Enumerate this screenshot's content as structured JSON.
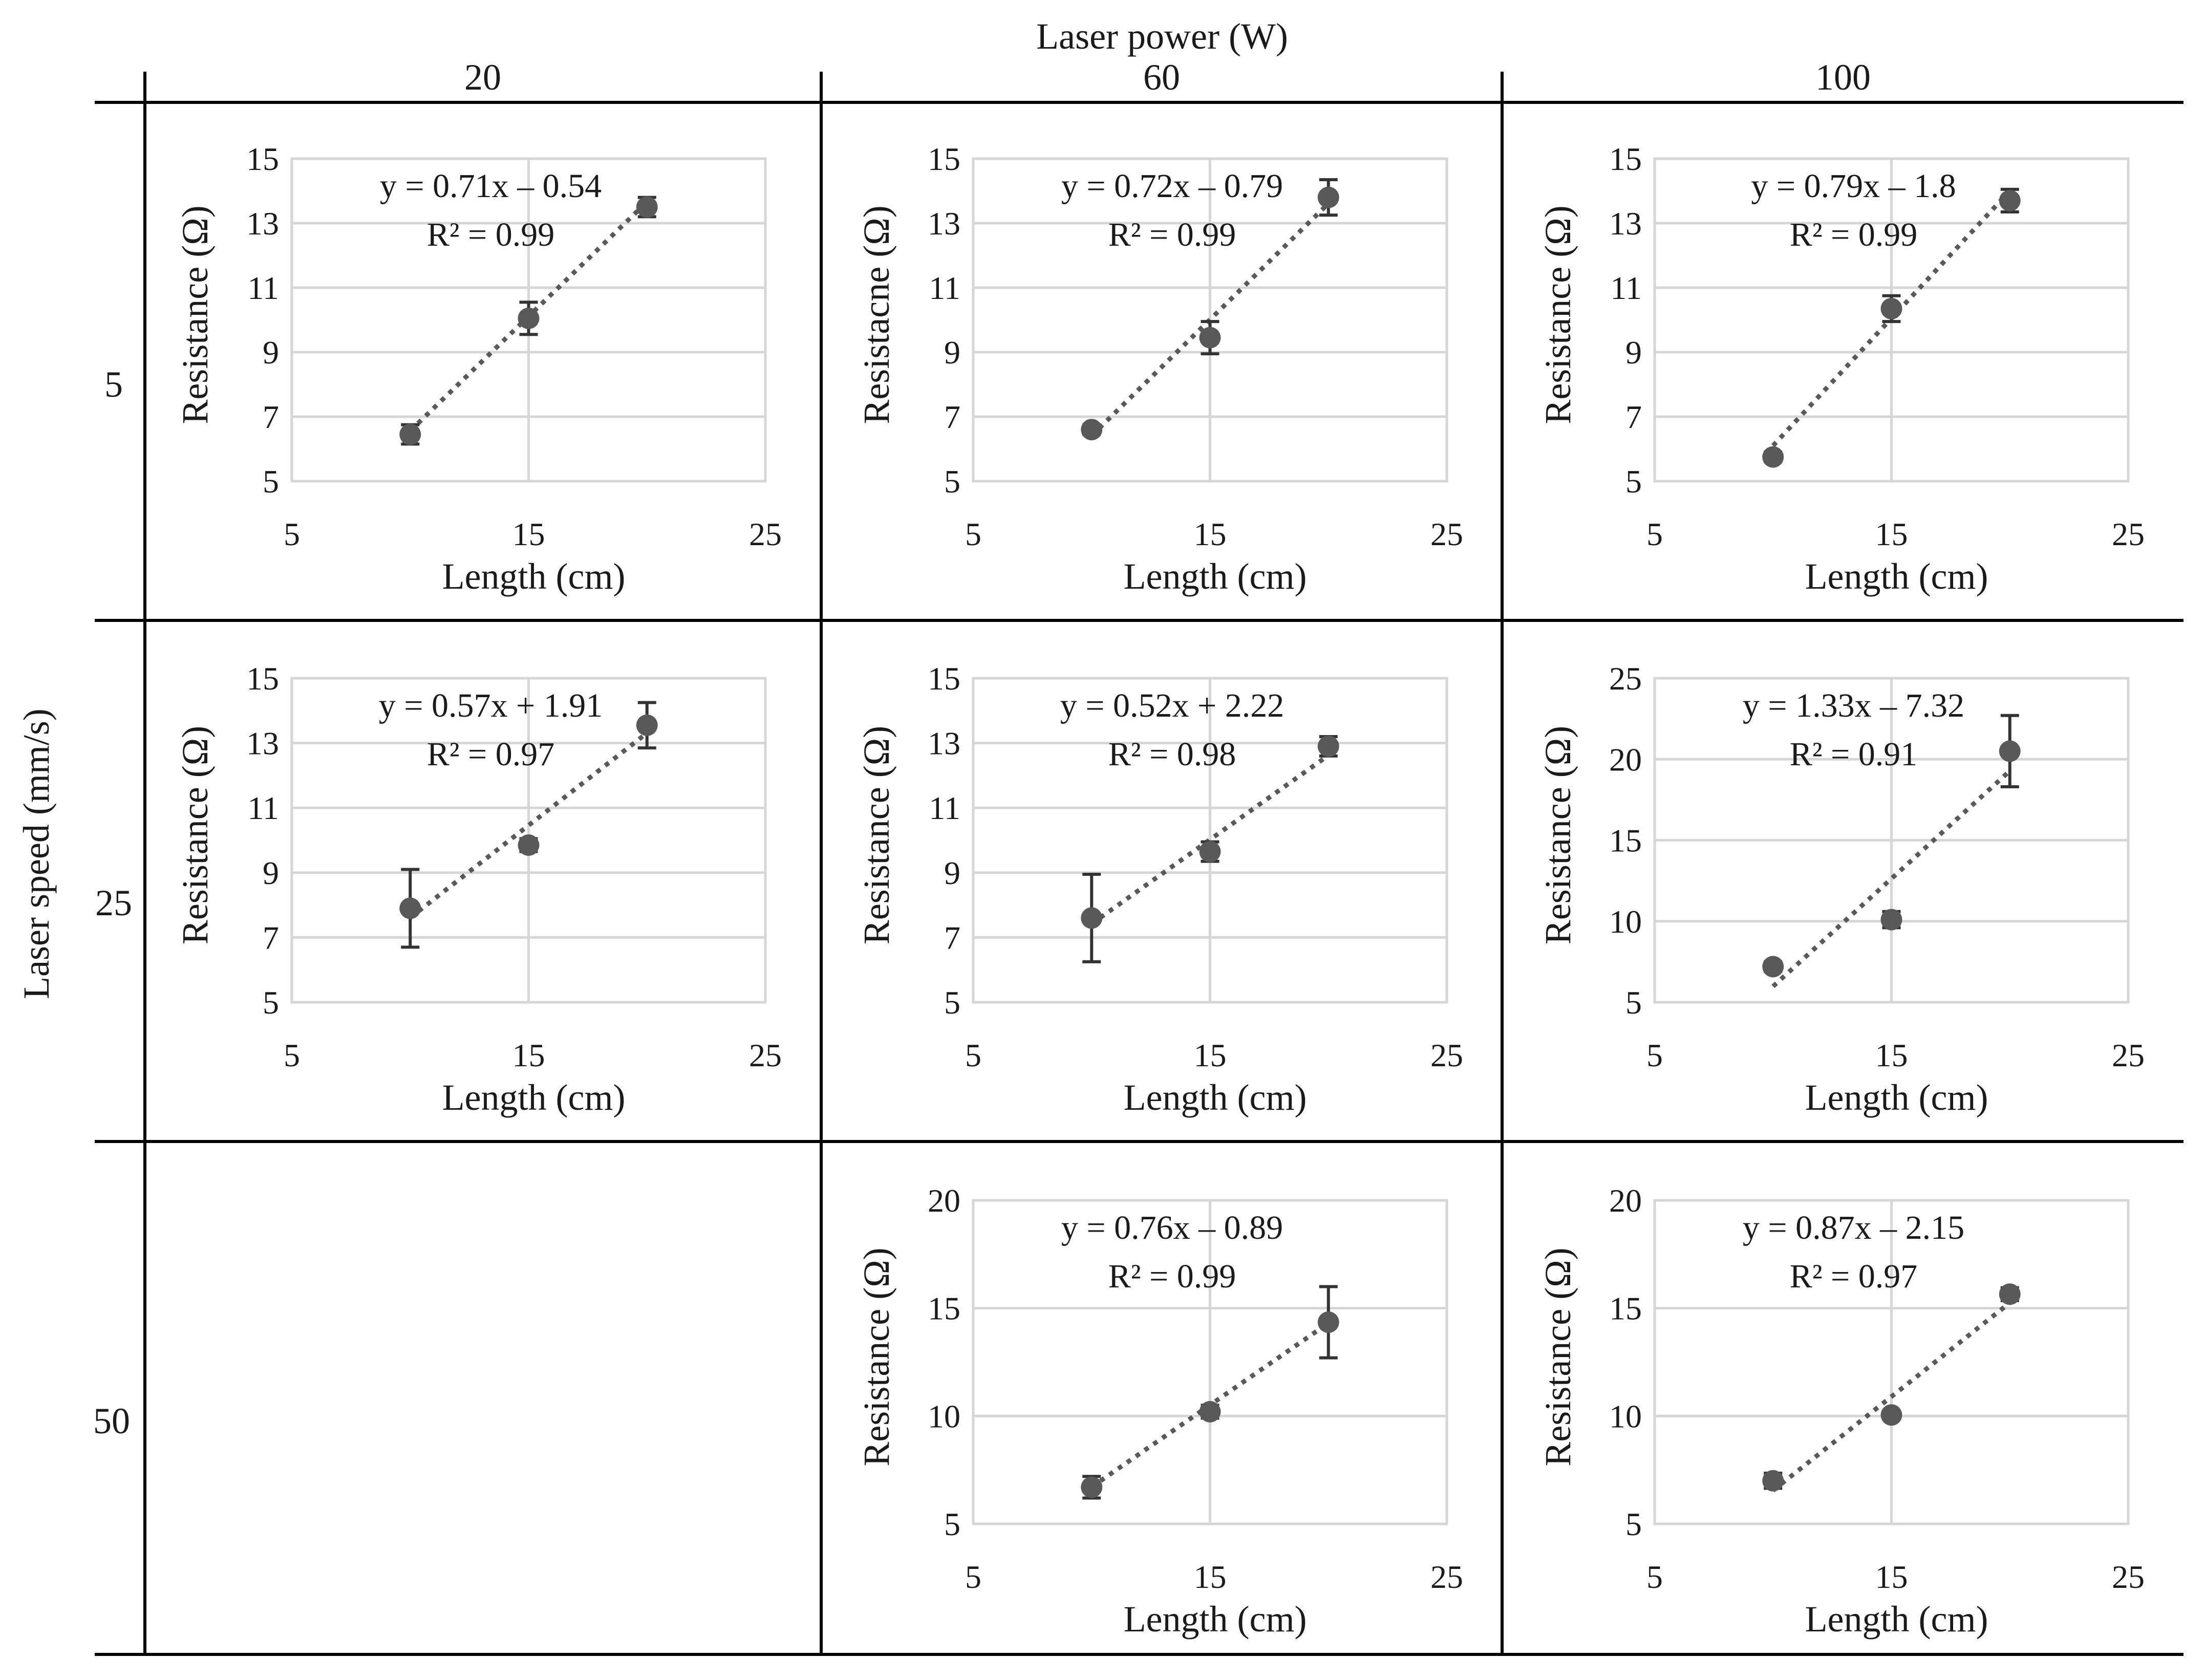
{
  "figure": {
    "top_title": "Laser power (W)",
    "left_title": "Laser speed (mm/s)",
    "power_headers": [
      "20",
      "60",
      "100"
    ],
    "speed_headers": [
      "5",
      "25",
      "50"
    ]
  },
  "chart_data": [
    {
      "id": "p20-s5",
      "row": 0,
      "col": 0,
      "type": "scatter",
      "xlabel": "Length (cm)",
      "ylabel": "Resistance (Ω)",
      "xlim": [
        5,
        25
      ],
      "xticks": [
        "5",
        "15",
        "25"
      ],
      "ylim": [
        5,
        15
      ],
      "yticks": [
        "5",
        "7",
        "9",
        "11",
        "13",
        "15"
      ],
      "x": [
        10,
        15,
        20
      ],
      "y": [
        6.45,
        10.05,
        13.5
      ],
      "err": [
        0.3,
        0.5,
        0.3
      ],
      "trend": {
        "slope": 0.71,
        "intercept": -0.54
      },
      "equation": "y = 0.71x – 0.54",
      "r2": "R² = 0.99"
    },
    {
      "id": "p60-s5",
      "row": 0,
      "col": 1,
      "type": "scatter",
      "xlabel": "Length (cm)",
      "ylabel": "Resistacne (Ω)",
      "xlim": [
        5,
        25
      ],
      "xticks": [
        "5",
        "15",
        "25"
      ],
      "ylim": [
        5,
        15
      ],
      "yticks": [
        "5",
        "7",
        "9",
        "11",
        "13",
        "15"
      ],
      "x": [
        10,
        15,
        20
      ],
      "y": [
        6.6,
        9.45,
        13.8
      ],
      "err": [
        0.15,
        0.5,
        0.55
      ],
      "trend": {
        "slope": 0.72,
        "intercept": -0.79
      },
      "equation": "y = 0.72x – 0.79",
      "r2": "R² = 0.99"
    },
    {
      "id": "p100-s5",
      "row": 0,
      "col": 2,
      "type": "scatter",
      "xlabel": "Length (cm)",
      "ylabel": "Resistance (Ω)",
      "xlim": [
        5,
        25
      ],
      "xticks": [
        "5",
        "15",
        "25"
      ],
      "ylim": [
        5,
        15
      ],
      "yticks": [
        "5",
        "7",
        "9",
        "11",
        "13",
        "15"
      ],
      "x": [
        10,
        15,
        20
      ],
      "y": [
        5.75,
        10.35,
        13.7
      ],
      "err": [
        0.15,
        0.4,
        0.35
      ],
      "trend": {
        "slope": 0.79,
        "intercept": -1.8
      },
      "equation": "y = 0.79x – 1.8",
      "r2": "R² = 0.99"
    },
    {
      "id": "p20-s25",
      "row": 1,
      "col": 0,
      "type": "scatter",
      "xlabel": "Length (cm)",
      "ylabel": "Resistance (Ω)",
      "xlim": [
        5,
        25
      ],
      "xticks": [
        "5",
        "15",
        "25"
      ],
      "ylim": [
        5,
        15
      ],
      "yticks": [
        "5",
        "7",
        "9",
        "11",
        "13",
        "15"
      ],
      "x": [
        10,
        15,
        20
      ],
      "y": [
        7.9,
        9.85,
        13.55
      ],
      "err": [
        1.2,
        0.2,
        0.7
      ],
      "trend": {
        "slope": 0.57,
        "intercept": 1.91
      },
      "equation": "y = 0.57x + 1.91",
      "r2": "R² = 0.97"
    },
    {
      "id": "p60-s25",
      "row": 1,
      "col": 1,
      "type": "scatter",
      "xlabel": "Length (cm)",
      "ylabel": "Resistance (Ω)",
      "xlim": [
        5,
        25
      ],
      "xticks": [
        "5",
        "15",
        "25"
      ],
      "ylim": [
        5,
        15
      ],
      "yticks": [
        "5",
        "7",
        "9",
        "11",
        "13",
        "15"
      ],
      "x": [
        10,
        15,
        20
      ],
      "y": [
        7.6,
        9.65,
        12.9
      ],
      "err": [
        1.35,
        0.3,
        0.3
      ],
      "trend": {
        "slope": 0.52,
        "intercept": 2.22
      },
      "equation": "y = 0.52x + 2.22",
      "r2": "R² = 0.98"
    },
    {
      "id": "p100-s25",
      "row": 1,
      "col": 2,
      "type": "scatter",
      "xlabel": "Length (cm)",
      "ylabel": "Resistance (Ω)",
      "xlim": [
        5,
        25
      ],
      "xticks": [
        "5",
        "15",
        "25"
      ],
      "ylim": [
        5,
        25
      ],
      "yticks": [
        "5",
        "10",
        "15",
        "20",
        "25"
      ],
      "x": [
        10,
        15,
        20
      ],
      "y": [
        7.2,
        10.1,
        20.5
      ],
      "err": [
        0.3,
        0.5,
        2.2
      ],
      "trend": {
        "slope": 1.33,
        "intercept": -7.32
      },
      "equation": "y = 1.33x – 7.32",
      "r2": "R² = 0.91"
    },
    {
      "id": "p60-s50",
      "row": 2,
      "col": 1,
      "type": "scatter",
      "xlabel": "Length (cm)",
      "ylabel": "Resistance (Ω)",
      "xlim": [
        5,
        25
      ],
      "xticks": [
        "5",
        "15",
        "25"
      ],
      "ylim": [
        5,
        20
      ],
      "yticks": [
        "5",
        "10",
        "15",
        "20"
      ],
      "x": [
        10,
        15,
        20
      ],
      "y": [
        6.7,
        10.2,
        14.35
      ],
      "err": [
        0.5,
        0.3,
        1.65
      ],
      "trend": {
        "slope": 0.76,
        "intercept": -0.89
      },
      "equation": "y = 0.76x – 0.89",
      "r2": "R² = 0.99"
    },
    {
      "id": "p100-s50",
      "row": 2,
      "col": 2,
      "type": "scatter",
      "xlabel": "Length (cm)",
      "ylabel": "Resistance (Ω)",
      "xlim": [
        5,
        25
      ],
      "xticks": [
        "5",
        "15",
        "25"
      ],
      "ylim": [
        5,
        20
      ],
      "yticks": [
        "5",
        "10",
        "15",
        "20"
      ],
      "x": [
        10,
        15,
        20
      ],
      "y": [
        7.0,
        10.05,
        15.65
      ],
      "err": [
        0.35,
        0.2,
        0.3
      ],
      "trend": {
        "slope": 0.87,
        "intercept": -2.15
      },
      "equation": "y = 0.87x – 2.15",
      "r2": "R² = 0.97"
    }
  ]
}
